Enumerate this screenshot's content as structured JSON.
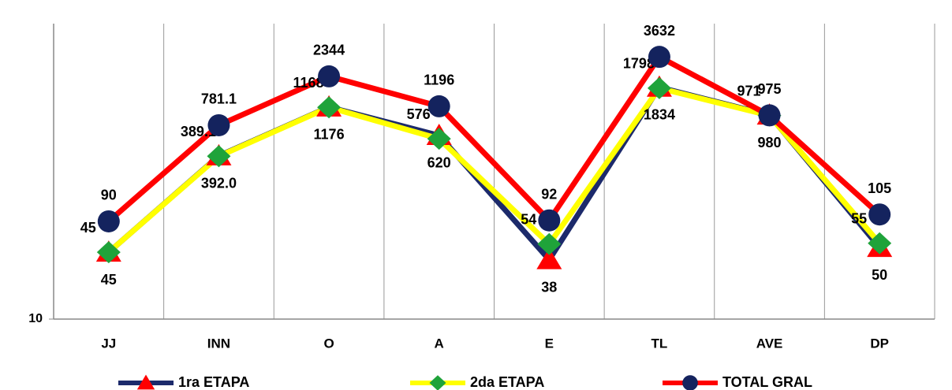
{
  "chart_data": {
    "type": "line",
    "categories": [
      "JJ",
      "INN",
      "O",
      "A",
      "E",
      "TL",
      "AVE",
      "DP"
    ],
    "series": [
      {
        "name": "1ra ETAPA",
        "color": "#1c2a6b",
        "marker": "triangle",
        "marker_color": "#ff0000",
        "values": [
          45,
          392,
          1176,
          620,
          38,
          1834,
          980,
          50
        ],
        "value_labels": [
          "45",
          "392.0",
          "1176",
          "620",
          "38",
          "1834",
          "980",
          "50"
        ]
      },
      {
        "name": "2da ETAPA",
        "color": "#ffff00",
        "marker": "diamond",
        "marker_color": "#1fa33a",
        "values": [
          45,
          389.1,
          1168,
          576,
          54,
          1798,
          971,
          55
        ]
      },
      {
        "name": "TOTAL GRAL",
        "color": "#ff0000",
        "marker": "circle",
        "marker_color": "#14235e",
        "values": [
          90,
          781.1,
          2344,
          1196,
          92,
          3632,
          975,
          105
        ]
      }
    ],
    "ylim": [
      10,
      10000
    ],
    "yticks": [
      10
    ],
    "log_y": true,
    "legend": "bottom"
  }
}
